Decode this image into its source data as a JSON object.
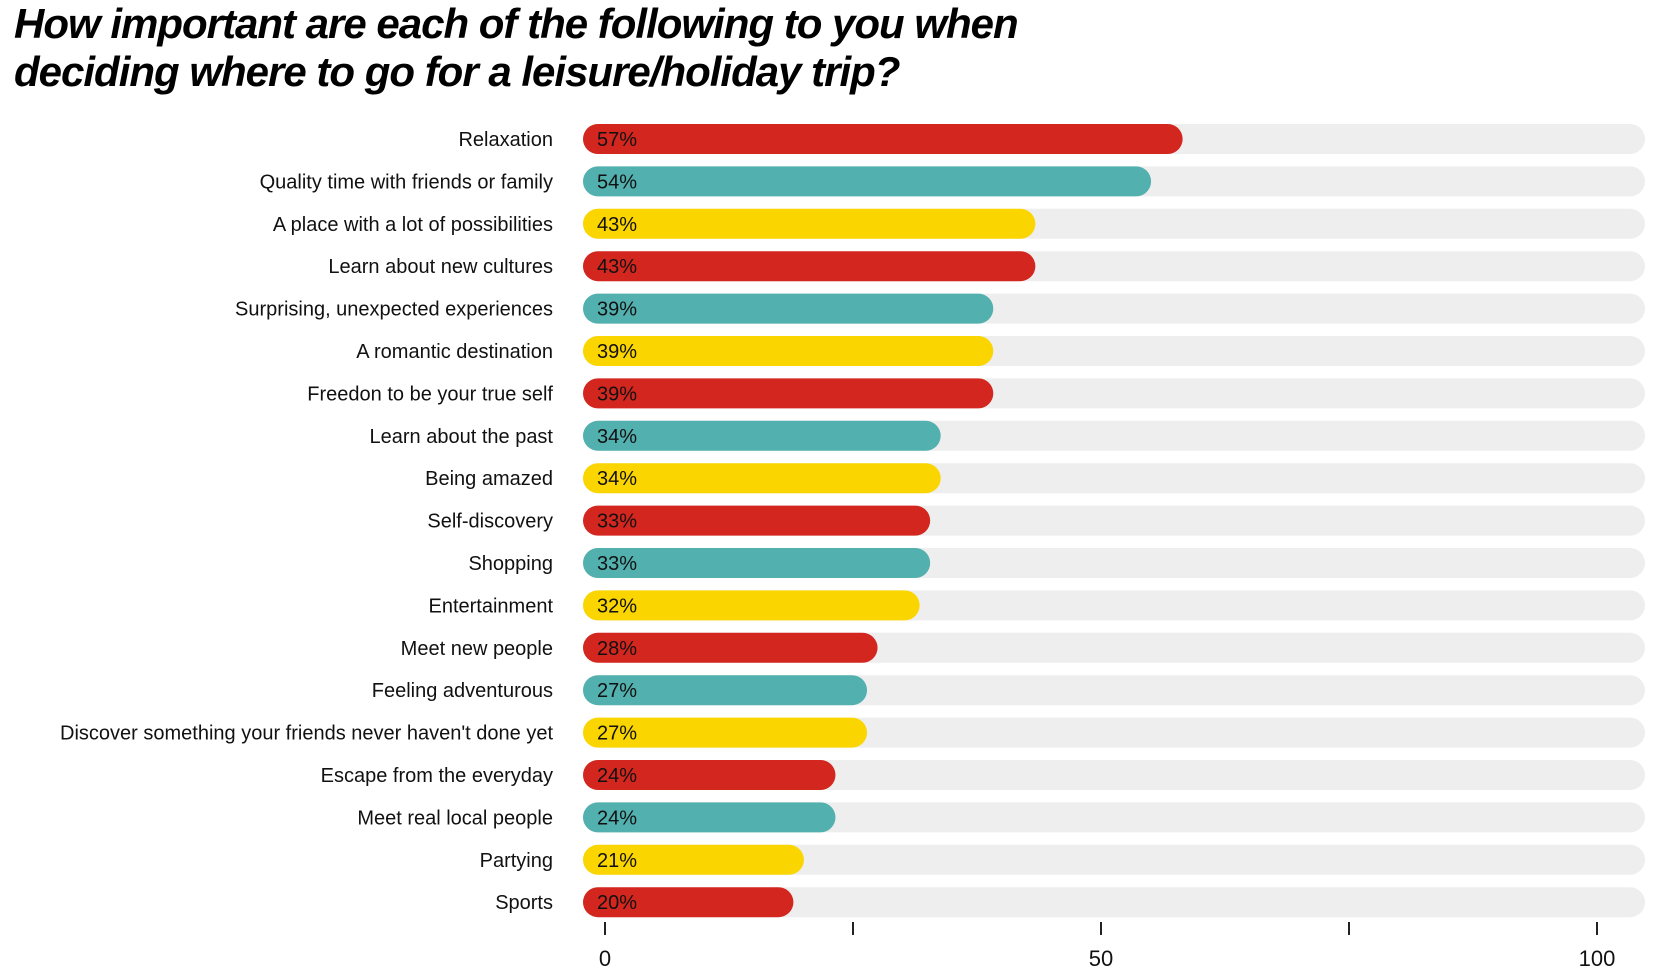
{
  "chart_data": {
    "type": "bar",
    "orientation": "horizontal",
    "title": "How important are each of the following to you when deciding where to go for a leisure/holiday trip?",
    "title_lines": [
      "How important are each of the following to you when",
      "deciding where to go for a leisure/holiday trip?"
    ],
    "xlabel": "",
    "ylabel": "",
    "xlim": [
      0,
      100
    ],
    "x_ticks": [
      0,
      50,
      100
    ],
    "value_suffix": "%",
    "grid": false,
    "legend": "none",
    "track_color": "#eeeeee",
    "colors": [
      "#d2261f",
      "#52b0ae",
      "#fbd500"
    ],
    "categories": [
      "Relaxation",
      "Quality time with friends or family",
      "A place with a lot of possibilities",
      "Learn about new cultures",
      "Surprising, unexpected experiences",
      "A romantic destination",
      "Freedon to be your true self",
      "Learn about the past",
      "Being amazed",
      "Self-discovery",
      "Shopping",
      "Entertainment",
      "Meet new people",
      "Feeling adventurous",
      "Discover something your friends never haven't done yet",
      "Escape from the everyday",
      "Meet real local people",
      "Partying",
      "Sports"
    ],
    "values": [
      57,
      54,
      43,
      43,
      39,
      39,
      39,
      34,
      34,
      33,
      33,
      32,
      28,
      27,
      27,
      24,
      24,
      21,
      20
    ],
    "bar_colors": [
      "#d2261f",
      "#52b0ae",
      "#fbd500",
      "#d2261f",
      "#52b0ae",
      "#fbd500",
      "#d2261f",
      "#52b0ae",
      "#fbd500",
      "#d2261f",
      "#52b0ae",
      "#fbd500",
      "#d2261f",
      "#52b0ae",
      "#fbd500",
      "#d2261f",
      "#52b0ae",
      "#fbd500",
      "#d2261f"
    ]
  }
}
